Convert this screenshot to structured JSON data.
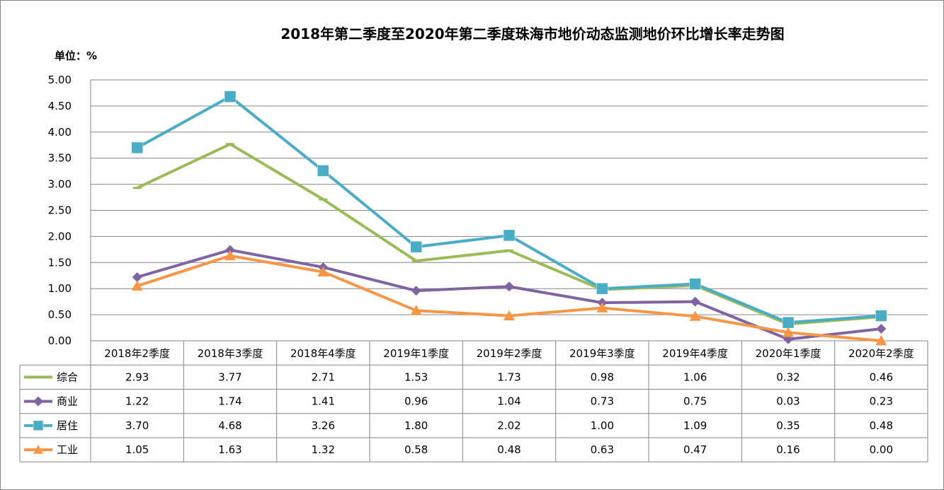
{
  "chart_data": {
    "type": "line",
    "title": "2018年第二季度至2020年第二季度珠海市地价动态监测地价环比增长率走势图",
    "unit_label": "单位：%",
    "categories": [
      "2018年2季度",
      "2018年3季度",
      "2018年4季度",
      "2019年1季度",
      "2019年2季度",
      "2019年3季度",
      "2019年4季度",
      "2020年1季度",
      "2020年2季度"
    ],
    "ylim": [
      0,
      5
    ],
    "y_ticks": [
      "0.00",
      "0.50",
      "1.00",
      "1.50",
      "2.00",
      "2.50",
      "3.00",
      "3.50",
      "4.00",
      "4.50",
      "5.00"
    ],
    "grid": true,
    "legend": "data-table-left",
    "series": [
      {
        "name": "综合",
        "color": "#9BBB59",
        "marker": "dash",
        "values": [
          2.93,
          3.77,
          2.71,
          1.53,
          1.73,
          0.98,
          1.06,
          0.32,
          0.46
        ],
        "labels": [
          "2.93",
          "3.77",
          "2.71",
          "1.53",
          "1.73",
          "0.98",
          "1.06",
          "0.32",
          "0.46"
        ]
      },
      {
        "name": "商业",
        "color": "#8064A2",
        "marker": "diamond",
        "values": [
          1.22,
          1.74,
          1.41,
          0.96,
          1.04,
          0.73,
          0.75,
          0.03,
          0.23
        ],
        "labels": [
          "1.22",
          "1.74",
          "1.41",
          "0.96",
          "1.04",
          "0.73",
          "0.75",
          "0.03",
          "0.23"
        ]
      },
      {
        "name": "居住",
        "color": "#4BACC6",
        "marker": "square",
        "values": [
          3.7,
          4.68,
          3.26,
          1.8,
          2.02,
          1.0,
          1.09,
          0.35,
          0.48
        ],
        "labels": [
          "3.70",
          "4.68",
          "3.26",
          "1.80",
          "2.02",
          "1.00",
          "1.09",
          "0.35",
          "0.48"
        ]
      },
      {
        "name": "工业",
        "color": "#F79646",
        "marker": "triangle",
        "values": [
          1.05,
          1.63,
          1.32,
          0.58,
          0.48,
          0.63,
          0.47,
          0.16,
          0.0
        ],
        "labels": [
          "1.05",
          "1.63",
          "1.32",
          "0.58",
          "0.48",
          "0.63",
          "0.47",
          "0.16",
          "0.00"
        ]
      }
    ]
  }
}
